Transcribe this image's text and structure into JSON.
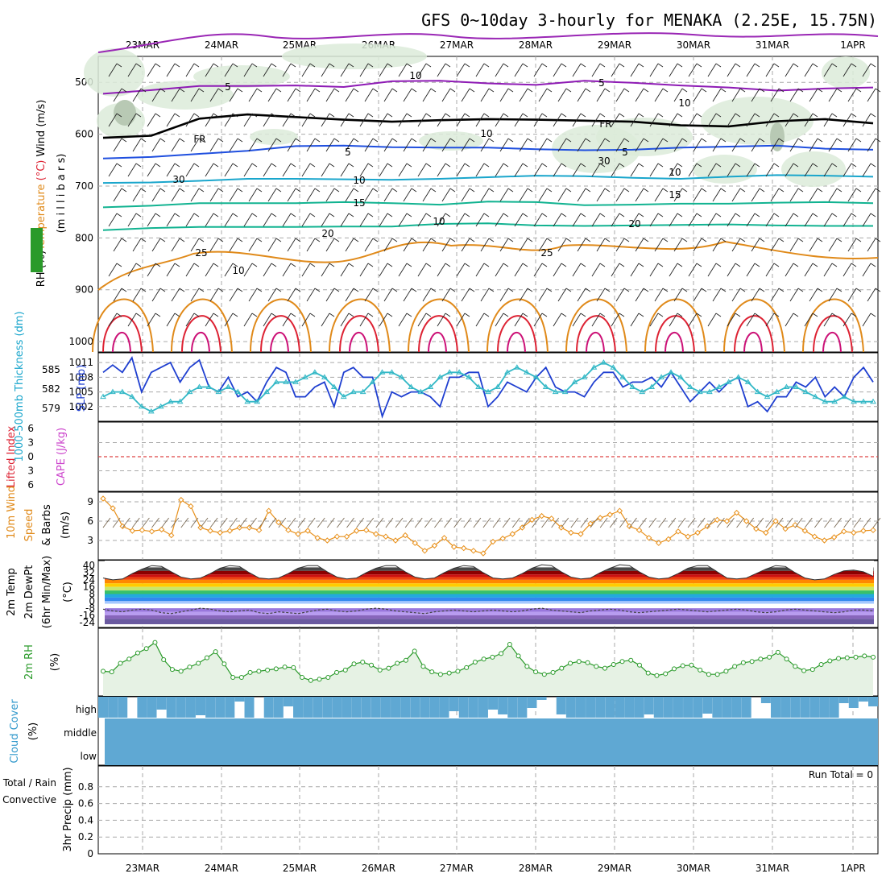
{
  "title": "GFS 0~10day 3-hourly for MENAKA (2.25E, 15.75N)",
  "date_labels": [
    "23MAR",
    "24MAR",
    "25MAR",
    "26MAR",
    "27MAR",
    "28MAR",
    "29MAR",
    "30MAR",
    "31MAR",
    "1APR"
  ],
  "colors": {
    "temperature_purple": "#8e1bb5",
    "freezing": "#000000",
    "temperature_blue": "#1f4fdf",
    "temperature_cyan": "#1aa6cc",
    "temperature_teal": "#12b391",
    "temperature_orange": "#e08a1a",
    "temperature_red": "#dd2233",
    "temperature_magenta": "#cc1177",
    "rh_shade": "#dcebd9",
    "slp_line": "#1f3fd0",
    "thickness_line": "#33b8c6",
    "wind_line": "#e8901a",
    "rh_line": "#2a9a2a",
    "cloud_fill": "#5fa8d3",
    "lifted_zero": "#dd4444"
  },
  "chart_data": [
    {
      "type": "line",
      "name": "upper_air_cross_section",
      "ylabel_parts": [
        "RH (%)",
        "Temperature",
        " (°C) ",
        "Wind (m/s)"
      ],
      "ylabel2": "(m i l l i b a r s)",
      "yticks": [
        "500",
        "600",
        "700",
        "800",
        "900",
        "1000"
      ],
      "ylim": [
        450,
        1020
      ],
      "contour_labels": [
        "5",
        "FR",
        "5",
        "10",
        "15",
        "20",
        "25",
        "5",
        "FR",
        "5",
        "10",
        "15",
        "20",
        "25",
        "10",
        "30",
        "30",
        "10",
        "10",
        "10",
        "10"
      ],
      "series": [
        {
          "name": "-5",
          "color_key": "temperature_purple",
          "values": [
            522,
            515,
            507,
            507,
            506,
            509,
            498,
            497,
            502,
            505,
            497,
            501,
            506,
            510,
            516,
            512,
            510
          ]
        },
        {
          "name": "FR",
          "color_key": "freezing",
          "values": [
            607,
            603,
            570,
            562,
            567,
            572,
            576,
            573,
            571,
            572,
            574,
            576,
            583,
            585,
            575,
            571,
            579
          ]
        },
        {
          "name": "5",
          "color_key": "temperature_blue",
          "values": [
            647,
            644,
            638,
            632,
            623,
            622,
            625,
            626,
            626,
            629,
            631,
            630,
            626,
            624,
            622,
            628,
            630
          ]
        },
        {
          "name": "10",
          "color_key": "temperature_cyan",
          "values": [
            694,
            693,
            690,
            686,
            686,
            687,
            688,
            686,
            683,
            680,
            681,
            684,
            686,
            682,
            679,
            680,
            682
          ]
        },
        {
          "name": "15",
          "color_key": "temperature_teal",
          "values": [
            741,
            738,
            733,
            733,
            733,
            731,
            733,
            736,
            730,
            731,
            737,
            736,
            734,
            734,
            732,
            731,
            733
          ]
        },
        {
          "name": "20",
          "color_key": "temperature_teal",
          "values": [
            785,
            781,
            779,
            779,
            779,
            778,
            778,
            773,
            772,
            776,
            777,
            776,
            775,
            774,
            776,
            777,
            777
          ]
        }
      ]
    },
    {
      "type": "line",
      "name": "slp_thickness",
      "ylabel": "1000-500mb Thickness (dm)",
      "ylabel2": "SLP (mb)",
      "yticks_left": [
        "585",
        "582",
        "579"
      ],
      "yticks_right": [
        "1011",
        "1008",
        "1005",
        "1002"
      ],
      "ylim_left": [
        577,
        588
      ],
      "ylim_right": [
        999,
        1013
      ],
      "series": [
        {
          "name": "SLP",
          "color_key": "slp_line",
          "axis": "right",
          "values": [
            1009,
            1010.5,
            1009,
            1012,
            1005,
            1009,
            1010,
            1011,
            1007,
            1010,
            1011.5,
            1006,
            1005,
            1008,
            1004,
            1005,
            1003,
            1007,
            1010,
            1009,
            1004,
            1004,
            1006,
            1007,
            1002,
            1009,
            1010,
            1008,
            1008,
            1000,
            1005,
            1004,
            1005,
            1005,
            1004,
            1002,
            1008,
            1008,
            1009,
            1009,
            1002,
            1004,
            1007,
            1006,
            1005,
            1008,
            1010,
            1006,
            1005,
            1005,
            1004,
            1007,
            1009,
            1009,
            1006,
            1007,
            1007,
            1008,
            1006,
            1009,
            1006,
            1003,
            1005,
            1007,
            1005,
            1007,
            1008,
            1002,
            1003,
            1001,
            1004,
            1004,
            1007,
            1006,
            1008,
            1004,
            1006,
            1004,
            1008,
            1010,
            1007
          ]
        },
        {
          "name": "Thickness",
          "color_key": "thickness_line",
          "axis": "right",
          "values": [
            1004,
            1005,
            1005,
            1004,
            1002,
            1001,
            1002,
            1003,
            1003,
            1005,
            1006,
            1006,
            1005,
            1006,
            1005,
            1003,
            1003,
            1005,
            1007,
            1007,
            1007,
            1008,
            1009,
            1008,
            1006,
            1004,
            1005,
            1005,
            1007,
            1009,
            1009,
            1008,
            1006,
            1005,
            1006,
            1008,
            1009,
            1009,
            1008,
            1006,
            1005,
            1006,
            1009,
            1010,
            1009,
            1008,
            1006,
            1005,
            1005,
            1007,
            1008,
            1010,
            1011,
            1010,
            1008,
            1006,
            1005,
            1006,
            1008,
            1009,
            1008,
            1006,
            1005,
            1005,
            1006,
            1007,
            1008,
            1007,
            1005,
            1004,
            1005,
            1006,
            1006,
            1005,
            1004,
            1003,
            1003,
            1004,
            1003,
            1003,
            1003
          ]
        }
      ]
    },
    {
      "type": "line",
      "name": "li_cape",
      "ylabel": "Lifted Index",
      "ylabel2": "CAPE (J/kg)",
      "yticks_left": [
        "-6",
        "-3",
        "0",
        "3",
        "6"
      ],
      "ylim": [
        -6,
        6
      ],
      "series": [
        {
          "name": "Lifted Index",
          "color_key": "lifted_zero",
          "values": [
            0
          ]
        }
      ]
    },
    {
      "type": "line",
      "name": "wind_10m",
      "ylabel_parts": [
        "10m Wind",
        "Speed",
        "& Barbs"
      ],
      "ylabel2": "(m/s)",
      "yticks": [
        "9",
        "6",
        "3"
      ],
      "ylim": [
        0,
        10.5
      ],
      "series": [
        {
          "name": "10m wind speed",
          "color_key": "wind_line",
          "values": [
            9.5,
            8.0,
            5.2,
            4.5,
            4.6,
            4.4,
            4.7,
            3.8,
            9.3,
            8.3,
            5.0,
            4.5,
            4.2,
            4.5,
            5.0,
            5.0,
            4.6,
            7.6,
            5.8,
            4.6,
            4.0,
            4.5,
            3.4,
            3.0,
            3.6,
            3.6,
            4.5,
            4.6,
            4.0,
            3.6,
            3.0,
            3.8,
            2.6,
            1.4,
            2.2,
            3.4,
            2.0,
            1.8,
            1.4,
            1.0,
            2.8,
            3.3,
            4.0,
            5.0,
            6.2,
            6.8,
            6.4,
            5.0,
            4.2,
            4.0,
            5.6,
            6.5,
            7.0,
            7.6,
            5.2,
            4.6,
            3.4,
            2.6,
            3.2,
            4.4,
            3.6,
            4.2,
            5.2,
            6.2,
            6.0,
            7.3,
            6.0,
            4.8,
            4.2,
            6.0,
            4.8,
            5.4,
            4.5,
            3.6,
            3.0,
            3.5,
            4.4,
            4.2,
            4.5,
            4.6
          ]
        }
      ]
    },
    {
      "type": "area",
      "name": "temp_dewpoint",
      "ylabel_parts": [
        "2m Temp",
        "2m DewPt",
        "(6hr Min/Max)"
      ],
      "ylabel2": "(°C)",
      "yticks": [
        "40",
        "32",
        "24",
        "16",
        "8",
        "0",
        "-8",
        "-16",
        "-24"
      ],
      "ylim": [
        -26,
        42
      ],
      "series": [
        {
          "name": "2m temperature",
          "values": [
            26,
            24,
            25,
            31,
            36,
            40,
            39,
            33,
            27,
            25,
            26,
            31,
            37,
            40,
            39,
            32,
            26,
            25,
            26,
            31,
            37,
            40,
            40,
            33,
            27,
            25,
            26,
            32,
            37,
            40,
            40,
            33,
            27,
            25,
            26,
            32,
            37,
            40,
            39,
            32,
            26,
            25,
            26,
            31,
            37,
            41,
            40,
            33,
            27,
            25,
            26,
            32,
            37,
            41,
            40,
            33,
            27,
            25,
            26,
            31,
            37,
            40,
            40,
            33,
            26,
            25,
            26,
            31,
            36,
            40,
            39,
            32,
            26,
            24,
            25,
            30,
            34,
            35,
            33,
            28
          ]
        },
        {
          "name": "2m dewpoint",
          "values": [
            -9,
            -11,
            -12,
            -10,
            -9,
            -10,
            -13,
            -14,
            -12,
            -10,
            -8,
            -9,
            -11,
            -12,
            -11,
            -10,
            -13,
            -14,
            -12,
            -13,
            -14,
            -12,
            -10,
            -9,
            -11,
            -12,
            -11,
            -9,
            -8,
            -9,
            -11,
            -12,
            -13,
            -14,
            -12,
            -11,
            -10,
            -11,
            -12,
            -11,
            -10,
            -11,
            -12,
            -11,
            -9,
            -8,
            -10,
            -11,
            -12,
            -13,
            -11,
            -10,
            -9,
            -10,
            -12,
            -13,
            -12,
            -11,
            -10,
            -9,
            -10,
            -11,
            -12,
            -11,
            -10,
            -9,
            -10,
            -12,
            -13,
            -12,
            -10,
            -9,
            -10,
            -11,
            -12,
            -13,
            -12,
            -10,
            -10,
            -11
          ]
        }
      ]
    },
    {
      "type": "area",
      "name": "rh_2m",
      "ylabel": "2m RH",
      "ylabel2": "(%)",
      "ylim": [
        0,
        100
      ],
      "series": [
        {
          "name": "2m RH",
          "color_key": "rh_line",
          "values": [
            35,
            34,
            48,
            55,
            65,
            72,
            82,
            54,
            38,
            35,
            42,
            48,
            57,
            67,
            47,
            25,
            25,
            33,
            35,
            37,
            39,
            42,
            41,
            25,
            20,
            22,
            25,
            33,
            37,
            47,
            50,
            45,
            37,
            40,
            48,
            53,
            68,
            43,
            34,
            30,
            32,
            35,
            41,
            50,
            55,
            58,
            64,
            79,
            60,
            43,
            34,
            30,
            33,
            40,
            48,
            51,
            49,
            43,
            40,
            46,
            51,
            53,
            45,
            32,
            28,
            31,
            39,
            44,
            45,
            37,
            30,
            30,
            35,
            43,
            49,
            51,
            55,
            58,
            66,
            55,
            43,
            36,
            38,
            46,
            52,
            56,
            57,
            58,
            60,
            58
          ]
        }
      ]
    },
    {
      "type": "bar",
      "name": "cloud_cover",
      "ylabel": "Cloud Cover",
      "ylabel2": "(%)",
      "yticks": [
        "high",
        "middle",
        "low"
      ],
      "series": [
        {
          "name": "high cloud",
          "values": [
            100,
            100,
            100,
            5,
            100,
            100,
            100,
            100,
            10,
            100,
            100,
            100,
            100,
            100,
            100,
            100,
            100,
            100,
            100,
            100,
            100,
            100,
            100,
            8,
            100,
            100,
            100,
            100,
            100,
            100,
            100,
            100,
            100,
            100,
            100,
            100,
            100,
            100,
            100,
            100,
            100,
            100,
            100,
            100,
            100,
            100,
            100,
            100,
            100,
            100,
            100,
            100,
            100,
            100,
            100,
            100,
            100,
            100,
            100,
            100,
            100,
            100,
            100,
            100,
            100,
            100,
            100,
            100,
            100,
            100,
            100,
            100,
            100,
            100,
            100,
            100,
            100,
            100,
            100,
            100
          ]
        }
      ]
    },
    {
      "type": "bar",
      "name": "precip_3hr",
      "ylabel_parts": [
        "Total / Rain",
        "Convective"
      ],
      "ylabel2": "3hr Precip (mm)",
      "yticks": [
        "0.8",
        "0.6",
        "0.4",
        "0.2",
        "0"
      ],
      "ylim": [
        0,
        1.0
      ],
      "run_total": "Run Total = 0",
      "series": [
        {
          "name": "total",
          "values": [
            0
          ]
        }
      ]
    }
  ]
}
